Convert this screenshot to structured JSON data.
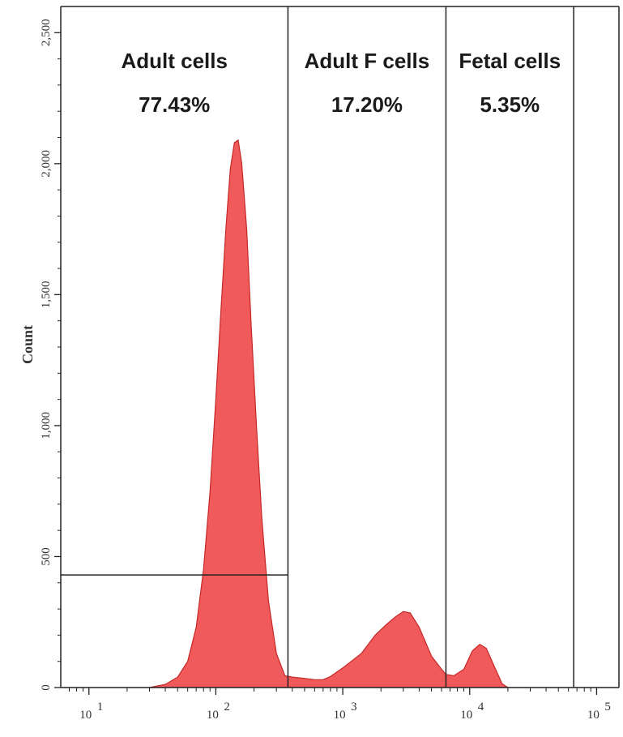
{
  "chart_data": {
    "type": "area",
    "title": "",
    "xlabel": "",
    "ylabel": "Count",
    "x_scale": "log",
    "xlim": [
      6,
      150000
    ],
    "ylim": [
      0,
      2600
    ],
    "x_ticks": [
      {
        "value": 10,
        "label": "10",
        "exp": "1"
      },
      {
        "value": 100,
        "label": "10",
        "exp": "2"
      },
      {
        "value": 1000,
        "label": "10",
        "exp": "3"
      },
      {
        "value": 10000,
        "label": "10",
        "exp": "4"
      },
      {
        "value": 100000,
        "label": "10",
        "exp": "5"
      }
    ],
    "y_ticks": [
      {
        "value": 0,
        "label": "0"
      },
      {
        "value": 500,
        "label": "500"
      },
      {
        "value": 1000,
        "label": "1,000"
      },
      {
        "value": 1500,
        "label": "1,500"
      },
      {
        "value": 2000,
        "label": "2,000"
      },
      {
        "value": 2500,
        "label": "2,500"
      }
    ],
    "gates": [
      {
        "name": "Adult cells",
        "percent": "77.43%",
        "x_range": [
          6,
          370
        ]
      },
      {
        "name": "Adult F cells",
        "percent": "17.20%",
        "x_range": [
          370,
          6500
        ]
      },
      {
        "name": "Fetal cells",
        "percent": "5.35%",
        "x_range": [
          6500,
          66000
        ]
      }
    ],
    "threshold_line": {
      "y": 430,
      "x_range": [
        6,
        370
      ]
    },
    "series": [
      {
        "color": "#f05a5a",
        "points": [
          [
            30,
            0
          ],
          [
            40,
            12
          ],
          [
            50,
            40
          ],
          [
            60,
            100
          ],
          [
            70,
            230
          ],
          [
            80,
            450
          ],
          [
            90,
            750
          ],
          [
            100,
            1100
          ],
          [
            110,
            1450
          ],
          [
            120,
            1750
          ],
          [
            130,
            1980
          ],
          [
            140,
            2080
          ],
          [
            150,
            2090
          ],
          [
            160,
            2000
          ],
          [
            175,
            1750
          ],
          [
            190,
            1380
          ],
          [
            210,
            980
          ],
          [
            230,
            650
          ],
          [
            260,
            330
          ],
          [
            300,
            130
          ],
          [
            350,
            45
          ],
          [
            400,
            40
          ],
          [
            500,
            35
          ],
          [
            600,
            30
          ],
          [
            700,
            30
          ],
          [
            800,
            42
          ],
          [
            1000,
            75
          ],
          [
            1400,
            130
          ],
          [
            1800,
            200
          ],
          [
            2200,
            240
          ],
          [
            2600,
            270
          ],
          [
            3000,
            290
          ],
          [
            3400,
            285
          ],
          [
            4000,
            230
          ],
          [
            5000,
            120
          ],
          [
            6000,
            70
          ],
          [
            6500,
            50
          ],
          [
            7500,
            45
          ],
          [
            9000,
            70
          ],
          [
            10500,
            140
          ],
          [
            12000,
            165
          ],
          [
            13500,
            150
          ],
          [
            16000,
            70
          ],
          [
            18000,
            15
          ],
          [
            20000,
            0
          ]
        ]
      }
    ]
  }
}
